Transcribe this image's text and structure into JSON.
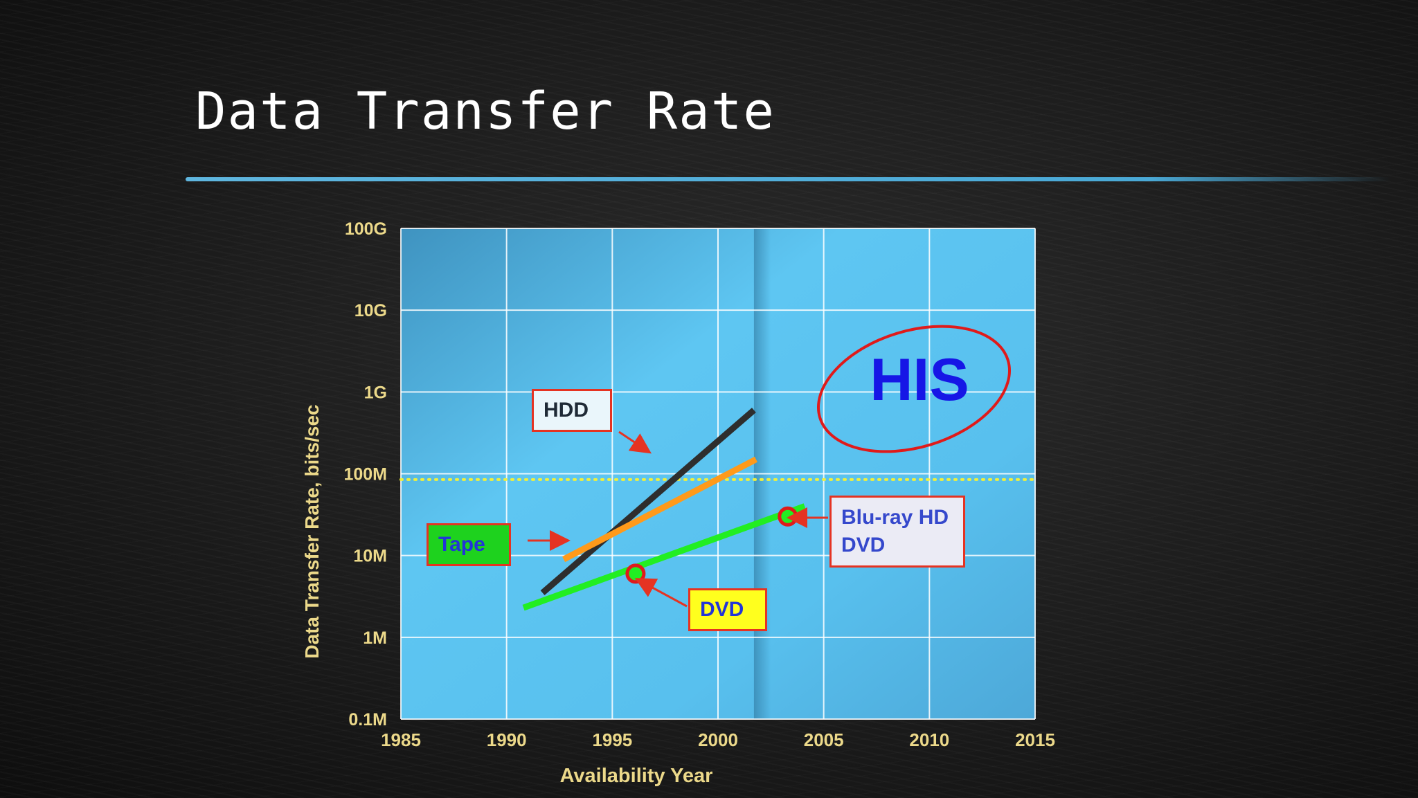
{
  "slide": {
    "title": "Data Transfer Rate"
  },
  "chart_data": {
    "type": "line",
    "xlabel": "Availability Year",
    "ylabel": "Data Transfer Rate, bits/sec",
    "xlim": [
      1985,
      2015
    ],
    "x_ticks": [
      "1985",
      "1990",
      "1995",
      "2000",
      "2005",
      "2010",
      "2015"
    ],
    "y_scale": "log",
    "ylim": [
      100000,
      100000000000
    ],
    "y_ticks": [
      {
        "label": "100G",
        "value": 100000000000
      },
      {
        "label": "10G",
        "value": 10000000000
      },
      {
        "label": "1G",
        "value": 1000000000
      },
      {
        "label": "100M",
        "value": 100000000
      },
      {
        "label": "10M",
        "value": 10000000
      },
      {
        "label": "1M",
        "value": 1000000
      },
      {
        "label": "0.1M",
        "value": 100000
      }
    ],
    "grid": true,
    "series": [
      {
        "name": "HDD",
        "color": "#2e2e2e",
        "points": [
          [
            1991.7,
            3500000
          ],
          [
            2001.7,
            600000000
          ]
        ]
      },
      {
        "name": "Tape",
        "color": "#ff9a1a",
        "points": [
          [
            1992.7,
            9000000
          ],
          [
            2001.8,
            150000000
          ]
        ]
      },
      {
        "name": "DVD",
        "color": "#22ee22",
        "points": [
          [
            1990.8,
            2300000
          ],
          [
            2004.1,
            40000000
          ]
        ]
      }
    ],
    "markers": [
      {
        "label": "DVD",
        "x": 1996.1,
        "y": 6000000,
        "color": "#e01a1a"
      },
      {
        "label": "Blu-ray HD DVD",
        "x": 2003.3,
        "y": 30000000,
        "color": "#e01a1a"
      }
    ],
    "reference_line": {
      "y": 85000000,
      "color": "#f0f03c",
      "style": "dotted"
    },
    "shaded_region": {
      "x_from": 2001.7,
      "x_to": 2015
    },
    "annotations": [
      {
        "text": "HDD",
        "target": "HDD"
      },
      {
        "text": "Tape",
        "target": "Tape"
      },
      {
        "text": "DVD",
        "target": "DVD"
      },
      {
        "text_lines": [
          "Blu-ray HD",
          "DVD"
        ],
        "target": "Blu-ray HD DVD"
      },
      {
        "text": "HIS",
        "style": "red-ellipse"
      }
    ],
    "colors": {
      "plot_bg": "#4fbde8",
      "axis_text": "#ecd98a",
      "arrow": "#e53322"
    }
  }
}
